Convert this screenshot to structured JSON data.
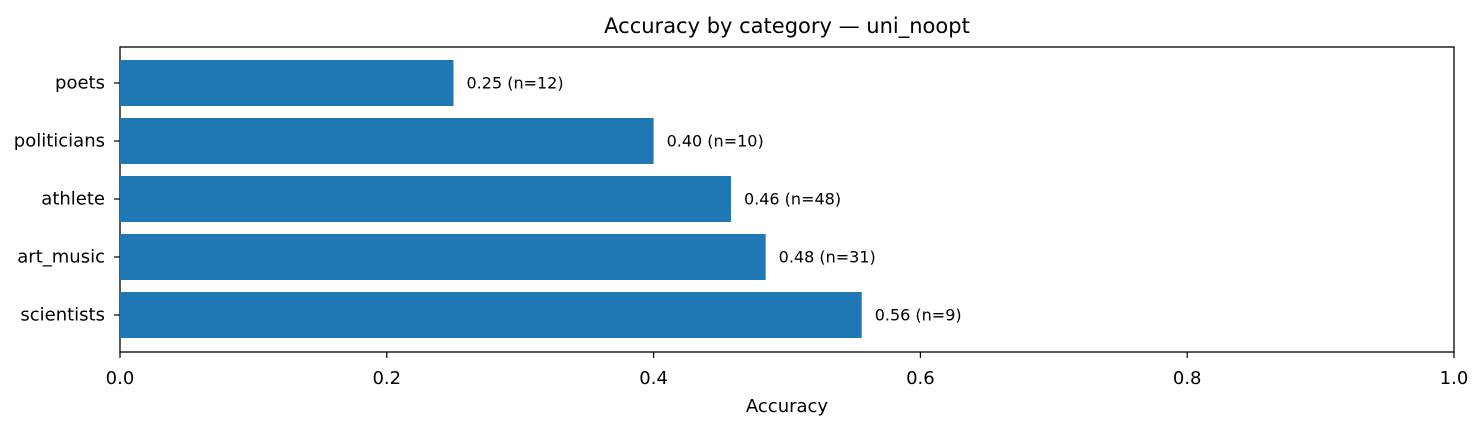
{
  "chart_data": {
    "type": "bar",
    "orientation": "horizontal",
    "title": "Accuracy by category — uni_noopt",
    "xlabel": "Accuracy",
    "ylabel": "",
    "xlim": [
      0,
      1
    ],
    "xticks": [
      0.0,
      0.2,
      0.4,
      0.6,
      0.8,
      1.0
    ],
    "xtick_labels": [
      "0.0",
      "0.2",
      "0.4",
      "0.6",
      "0.8",
      "1.0"
    ],
    "categories": [
      "poets",
      "politicians",
      "athlete",
      "art_music",
      "scientists"
    ],
    "values": [
      0.25,
      0.4,
      0.458,
      0.484,
      0.556
    ],
    "bar_labels": [
      "0.25  (n=12)",
      "0.40  (n=10)",
      "0.46  (n=48)",
      "0.48  (n=31)",
      "0.56  (n=9)"
    ],
    "bar_color": "#1f77b4",
    "grid": false,
    "legend": null
  }
}
